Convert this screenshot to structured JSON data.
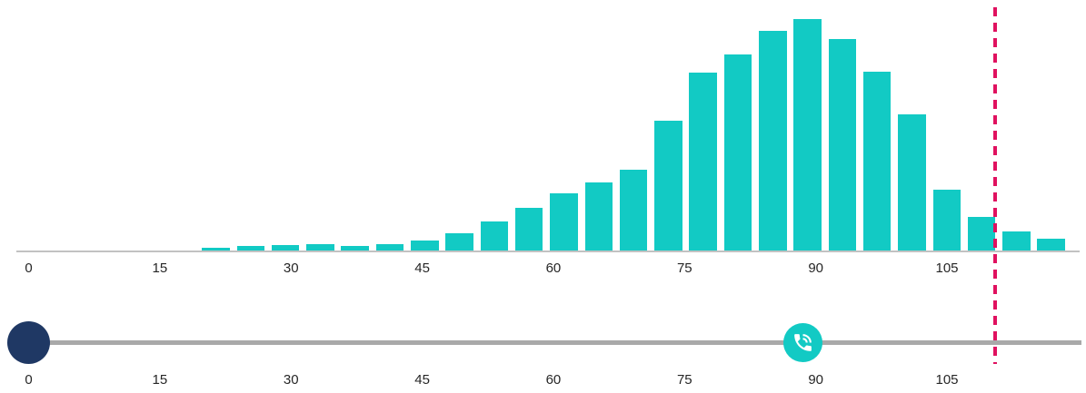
{
  "chart_data": {
    "type": "bar",
    "title": "",
    "xlabel": "",
    "ylabel": "",
    "x_ticks": [
      "0",
      "15",
      "30",
      "45",
      "60",
      "75",
      "90",
      "105"
    ],
    "x_tick_values": [
      0,
      15,
      30,
      45,
      60,
      75,
      90,
      105
    ],
    "xlim": [
      0,
      121
    ],
    "bin_centers": [
      21,
      25,
      29,
      33,
      37,
      41,
      45,
      49,
      53,
      57,
      61,
      65,
      69,
      73,
      77,
      81,
      85,
      89,
      93,
      97,
      101,
      105,
      109,
      113,
      117
    ],
    "values": [
      5,
      7,
      8,
      9,
      6.5,
      9,
      13,
      21,
      34,
      49,
      65,
      77,
      91,
      145,
      198,
      218,
      244,
      257,
      235,
      199,
      152,
      69,
      39,
      23,
      15
    ],
    "values_note": "relative frequency, no y-axis shown; values are bar heights in px",
    "bar_color": "#12CAC4",
    "axis_line_color": "#C2C2C2",
    "tick_label_color": "#262626",
    "grid": false,
    "legend": null,
    "threshold_line": {
      "value": 110.5,
      "color": "#E0115F",
      "style": "dashed"
    }
  },
  "slider": {
    "tick_labels": [
      "0",
      "15",
      "30",
      "45",
      "60",
      "75",
      "90",
      "105"
    ],
    "tick_values": [
      0,
      15,
      30,
      45,
      60,
      75,
      90,
      105
    ],
    "range": [
      0,
      121
    ],
    "track_color": "#A9A9A9",
    "handles": [
      {
        "id": "start",
        "value": 0,
        "color": "#1F3864",
        "icon": null
      },
      {
        "id": "phone",
        "value": 88.5,
        "color": "#12CAC4",
        "icon": "phone-volume-icon",
        "icon_color": "#FFFFFF"
      }
    ]
  }
}
